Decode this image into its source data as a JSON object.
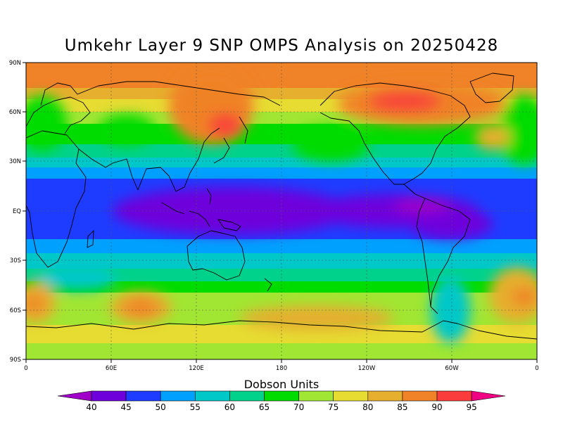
{
  "title": "Umkehr Layer 9 SNP OMPS Analysis on 20250428",
  "lat_labels": [
    "90N",
    "60N",
    "30N",
    "EQ",
    "30S",
    "60S",
    "90S"
  ],
  "lon_labels": [
    "0",
    "60E",
    "120E",
    "180",
    "120W",
    "60W",
    "0"
  ],
  "colorbar": {
    "title": "Dobson Units",
    "levels": [
      "40",
      "45",
      "50",
      "55",
      "60",
      "65",
      "70",
      "75",
      "80",
      "85",
      "90",
      "95"
    ],
    "colors": [
      "#a000c8",
      "#6e00dc",
      "#1e3cff",
      "#00a0ff",
      "#00c8c8",
      "#00d28c",
      "#00dc00",
      "#a0e632",
      "#e6dc32",
      "#e6af2d",
      "#f08228",
      "#fa3c3c",
      "#f00082"
    ]
  }
}
